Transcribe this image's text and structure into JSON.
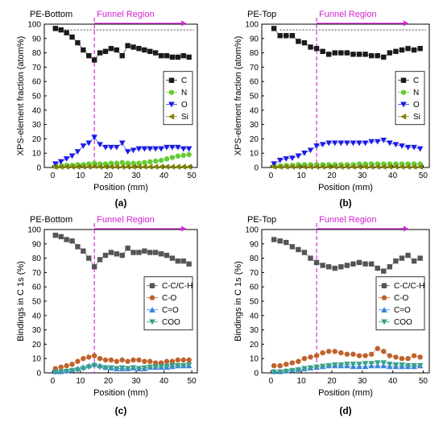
{
  "colors": {
    "black": "#1a1a1a",
    "green": "#66cc33",
    "blue": "#1a1ae6",
    "olive": "#808000",
    "gray": "#555555",
    "orange": "#c0622b",
    "lightblue": "#3c82e6",
    "teal": "#3aa08a",
    "funnel": "#d21fd2"
  },
  "chart_data": [
    {
      "type": "scatter",
      "title": "PE-Bottom",
      "panel_label": "(a)",
      "xlabel": "Position (mm)",
      "ylabel": "XPS-element fraction (atom%)",
      "xlim": [
        -3,
        52
      ],
      "ylim": [
        0,
        100
      ],
      "xticks": [
        0,
        10,
        20,
        30,
        40,
        50
      ],
      "yticks": [
        0,
        10,
        20,
        30,
        40,
        50,
        60,
        70,
        80,
        90,
        100
      ],
      "grid": false,
      "legend_position": "right-middle",
      "funnel_line_x": 15,
      "funnel_label": "Funnel Region",
      "reference_line_y": 96,
      "x": [
        1,
        3,
        5,
        7,
        9,
        11,
        13,
        15,
        17,
        19,
        21,
        23,
        25,
        27,
        29,
        31,
        33,
        35,
        37,
        39,
        41,
        43,
        45,
        47,
        49
      ],
      "series": [
        {
          "name": "C",
          "marker": "square",
          "color": "black",
          "values": [
            97,
            96,
            94,
            91,
            87,
            82,
            78,
            75,
            80,
            81,
            83,
            82,
            78,
            85,
            84,
            83,
            82,
            81,
            80,
            78,
            78,
            77,
            77,
            78,
            77
          ]
        },
        {
          "name": "N",
          "marker": "circle",
          "color": "green",
          "values": [
            0.5,
            1,
            1.5,
            1.5,
            2,
            2,
            2.5,
            3,
            2.5,
            2.5,
            3,
            3,
            3.5,
            3,
            3,
            3,
            3.5,
            4,
            4.5,
            5,
            6,
            7,
            8,
            8.5,
            9
          ]
        },
        {
          "name": "O",
          "marker": "triangle-down",
          "color": "blue",
          "values": [
            2.5,
            4,
            6,
            8,
            11,
            15,
            17,
            21,
            16,
            14,
            14,
            14,
            17,
            11,
            12,
            13,
            13,
            13,
            13,
            13,
            14,
            14,
            14,
            13,
            13
          ]
        },
        {
          "name": "Si",
          "marker": "triangle-left",
          "color": "olive",
          "values": [
            0.5,
            0.5,
            0.5,
            0.5,
            0.5,
            0.5,
            0.5,
            1,
            0.5,
            0.5,
            0.5,
            0.5,
            0.5,
            0.5,
            0.5,
            0.5,
            0.5,
            0.5,
            0.5,
            0.5,
            0.5,
            0.5,
            0.5,
            0.5,
            0.5
          ]
        }
      ]
    },
    {
      "type": "scatter",
      "title": "PE-Top",
      "panel_label": "(b)",
      "xlabel": "Position (mm)",
      "ylabel": "XPS-element fraction (atom%)",
      "xlim": [
        -3,
        52
      ],
      "ylim": [
        0,
        100
      ],
      "xticks": [
        0,
        10,
        20,
        30,
        40,
        50
      ],
      "yticks": [
        0,
        10,
        20,
        30,
        40,
        50,
        60,
        70,
        80,
        90,
        100
      ],
      "grid": false,
      "legend_position": "right-middle",
      "funnel_line_x": 15,
      "funnel_label": "Funnel Region",
      "reference_line_y": 96,
      "x": [
        1,
        3,
        5,
        7,
        9,
        11,
        13,
        15,
        17,
        19,
        21,
        23,
        25,
        27,
        29,
        31,
        33,
        35,
        37,
        39,
        41,
        43,
        45,
        47,
        49
      ],
      "series": [
        {
          "name": "C",
          "marker": "square",
          "color": "black",
          "values": [
            97,
            92,
            92,
            92,
            88,
            87,
            84,
            83,
            81,
            79,
            80,
            80,
            80,
            79,
            79,
            79,
            78,
            78,
            77,
            80,
            81,
            82,
            83,
            82,
            83
          ]
        },
        {
          "name": "N",
          "marker": "circle",
          "color": "green",
          "values": [
            1,
            1,
            1.5,
            1.5,
            2,
            2,
            2,
            2,
            2,
            2,
            2,
            2,
            2,
            2,
            2.5,
            2.5,
            2.5,
            2.5,
            2.5,
            2.5,
            2.5,
            2.5,
            2.5,
            2.5,
            2.5
          ]
        },
        {
          "name": "O",
          "marker": "triangle-down",
          "color": "blue",
          "values": [
            2.5,
            5,
            6,
            6.5,
            8,
            10,
            12,
            15,
            16,
            17,
            17,
            17,
            17,
            17,
            17,
            17,
            18,
            18,
            19,
            17,
            16,
            15,
            14,
            14,
            13
          ]
        },
        {
          "name": "Si",
          "marker": "triangle-left",
          "color": "olive",
          "values": [
            0.5,
            0.5,
            0.5,
            0.5,
            0.5,
            0.5,
            0.5,
            0.5,
            0.5,
            0.5,
            0.5,
            0.5,
            0.5,
            0.5,
            0.5,
            0.5,
            0.5,
            0.5,
            0.5,
            0.5,
            0.5,
            0.5,
            0.5,
            0.5,
            0.5
          ]
        }
      ]
    },
    {
      "type": "scatter",
      "title": "PE-Bottom",
      "panel_label": "(c)",
      "xlabel": "Position (mm)",
      "ylabel": "Bindings in C 1s (%)",
      "xlim": [
        -3,
        52
      ],
      "ylim": [
        0,
        100
      ],
      "xticks": [
        0,
        10,
        20,
        30,
        40,
        50
      ],
      "yticks": [
        0,
        10,
        20,
        30,
        40,
        50,
        60,
        70,
        80,
        90,
        100
      ],
      "grid": false,
      "legend_position": "right-middle",
      "funnel_line_x": 15,
      "funnel_label": "Funnel Region",
      "reference_line_y": null,
      "x": [
        1,
        3,
        5,
        7,
        9,
        11,
        13,
        15,
        17,
        19,
        21,
        23,
        25,
        27,
        29,
        31,
        33,
        35,
        37,
        39,
        41,
        43,
        45,
        47,
        49
      ],
      "series": [
        {
          "name": "C-C/C-H",
          "marker": "square",
          "color": "gray",
          "values": [
            96,
            95,
            93,
            92,
            88,
            85,
            80,
            74,
            79,
            82,
            84,
            83,
            82,
            87,
            84,
            84,
            85,
            84,
            84,
            83,
            82,
            80,
            78,
            78,
            76
          ]
        },
        {
          "name": "C-O",
          "marker": "circle",
          "color": "orange",
          "values": [
            3,
            4,
            5,
            6,
            8,
            10,
            11,
            12,
            10,
            9,
            9,
            8,
            9,
            8,
            9,
            9,
            8,
            8,
            7,
            7,
            8,
            8,
            9,
            9,
            9
          ]
        },
        {
          "name": "C=O",
          "marker": "triangle-up",
          "color": "lightblue",
          "values": [
            1,
            1,
            1.5,
            2,
            3,
            4,
            5,
            6,
            5,
            4,
            3.5,
            3,
            3,
            3,
            3.5,
            3,
            3,
            4,
            4,
            4,
            4,
            4.5,
            5,
            5,
            5
          ]
        },
        {
          "name": "COO",
          "marker": "triangle-down",
          "color": "teal",
          "values": [
            0.5,
            0.5,
            1,
            1.5,
            2,
            3,
            4,
            5,
            4,
            3.5,
            3.5,
            3,
            3.5,
            3,
            3.5,
            3,
            3.5,
            4,
            4,
            4.5,
            4.5,
            5,
            5,
            5,
            5.5
          ]
        }
      ]
    },
    {
      "type": "scatter",
      "title": "PE-Top",
      "panel_label": "(d)",
      "xlabel": "Position (mm)",
      "ylabel": "Bindings in C 1s (%)",
      "xlim": [
        -3,
        52
      ],
      "ylim": [
        0,
        100
      ],
      "xticks": [
        0,
        10,
        20,
        30,
        40,
        50
      ],
      "yticks": [
        0,
        10,
        20,
        30,
        40,
        50,
        60,
        70,
        80,
        90,
        100
      ],
      "grid": false,
      "legend_position": "right-middle",
      "funnel_line_x": 15,
      "funnel_label": "Funnel Region",
      "reference_line_y": null,
      "x": [
        1,
        3,
        5,
        7,
        9,
        11,
        13,
        15,
        17,
        19,
        21,
        23,
        25,
        27,
        29,
        31,
        33,
        35,
        37,
        39,
        41,
        43,
        45,
        47,
        49
      ],
      "series": [
        {
          "name": "C-C/C-H",
          "marker": "square",
          "color": "gray",
          "values": [
            93,
            92,
            91,
            88,
            86,
            84,
            80,
            77,
            75,
            74,
            73,
            74,
            75,
            76,
            77,
            76,
            76,
            73,
            71,
            74,
            78,
            80,
            82,
            78,
            80
          ]
        },
        {
          "name": "C-O",
          "marker": "circle",
          "color": "orange",
          "values": [
            5,
            5,
            6,
            7,
            8,
            10,
            11,
            12,
            14,
            15,
            15,
            14,
            13,
            13,
            12,
            12,
            13,
            17,
            15,
            12,
            11,
            10,
            10,
            12,
            11
          ]
        },
        {
          "name": "C=O",
          "marker": "triangle-up",
          "color": "lightblue",
          "values": [
            1,
            1,
            1.5,
            2,
            2.5,
            3,
            3.5,
            4,
            4.5,
            5,
            5,
            5,
            5,
            4.5,
            4.5,
            4.5,
            5,
            5,
            5,
            4.5,
            4.5,
            4.5,
            4.5,
            4.5,
            5
          ]
        },
        {
          "name": "COO",
          "marker": "triangle-down",
          "color": "teal",
          "values": [
            0.5,
            0.5,
            1,
            1.5,
            2,
            3,
            3.5,
            4,
            4.5,
            5,
            5.5,
            5.5,
            6,
            6,
            6,
            6.5,
            6.5,
            7,
            7,
            6,
            5.5,
            5.5,
            5,
            5,
            5
          ]
        }
      ]
    }
  ]
}
